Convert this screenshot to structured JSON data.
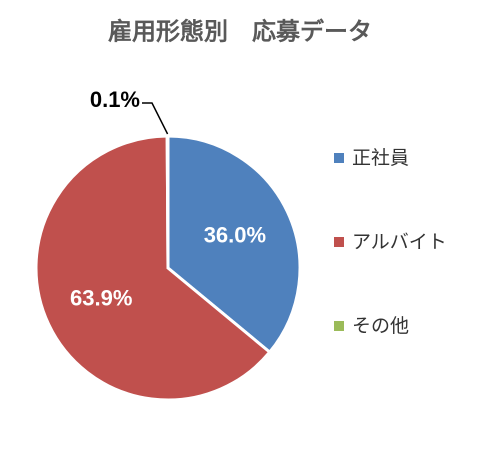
{
  "chart_data": {
    "type": "pie",
    "title": "雇用形態別　応募データ",
    "categories": [
      "正社員",
      "アルバイト",
      "その他"
    ],
    "values": [
      36.0,
      63.9,
      0.1
    ],
    "value_labels": [
      "36.0%",
      "63.9%",
      "0.1%"
    ],
    "colors": [
      "#4f81bd",
      "#c0504d",
      "#9bbb59"
    ],
    "legend": "right"
  }
}
